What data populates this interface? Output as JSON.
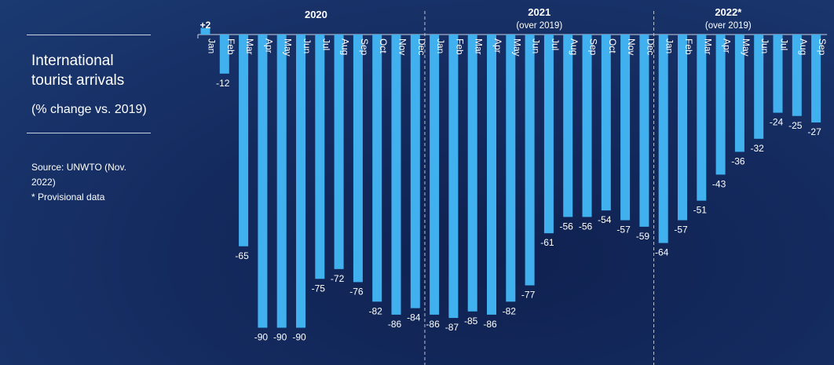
{
  "title": "International tourist arrivals",
  "subtitle": "(% change vs. 2019)",
  "source": "Source: UNWTO (Nov. 2022)",
  "note": "* Provisional data",
  "colors": {
    "bar": "#41b0ee",
    "text": "#ffffff"
  },
  "chart_data": {
    "type": "bar",
    "title": "International tourist arrivals",
    "ylabel": "% change vs. 2019",
    "ylim": [
      -90,
      2
    ],
    "groups": [
      {
        "label": "2020",
        "sublabel": "",
        "categories": [
          "Jan",
          "Feb",
          "Mar",
          "Apr",
          "May",
          "Jun",
          "Jul",
          "Aug",
          "Sep",
          "Oct",
          "Nov",
          "Dec"
        ],
        "values": [
          2,
          -12,
          -65,
          -90,
          -90,
          -90,
          -75,
          -72,
          -76,
          -82,
          -86,
          -84
        ],
        "value_labels": [
          "+2",
          "-12",
          "-65",
          "-90",
          "-90",
          "-90",
          "-75",
          "-72",
          "-76",
          "-82",
          "-86",
          "-84"
        ]
      },
      {
        "label": "2021",
        "sublabel": "(over 2019)",
        "categories": [
          "Jan",
          "Feb",
          "Mar",
          "Apr",
          "May",
          "Jun",
          "Jul",
          "Aug",
          "Sep",
          "Oct",
          "Nov",
          "Dec"
        ],
        "values": [
          -86,
          -87,
          -85,
          -86,
          -82,
          -77,
          -61,
          -56,
          -56,
          -54,
          -57,
          -59
        ],
        "value_labels": [
          "-86",
          "-87",
          "-85",
          "-86",
          "-82",
          "-77",
          "-61",
          "-56",
          "-56",
          "-54",
          "-57",
          "-59"
        ]
      },
      {
        "label": "2022*",
        "sublabel": "(over 2019)",
        "categories": [
          "Jan",
          "Feb",
          "Mar",
          "Apr",
          "May",
          "Jun",
          "Jul",
          "Aug",
          "Sep"
        ],
        "values": [
          -64,
          -57,
          -51,
          -43,
          -36,
          -32,
          -24,
          -25,
          -27
        ],
        "value_labels": [
          "-64",
          "-57",
          "-51",
          "-43",
          "-36",
          "-32",
          "-24",
          "-25",
          "-27"
        ]
      }
    ]
  }
}
